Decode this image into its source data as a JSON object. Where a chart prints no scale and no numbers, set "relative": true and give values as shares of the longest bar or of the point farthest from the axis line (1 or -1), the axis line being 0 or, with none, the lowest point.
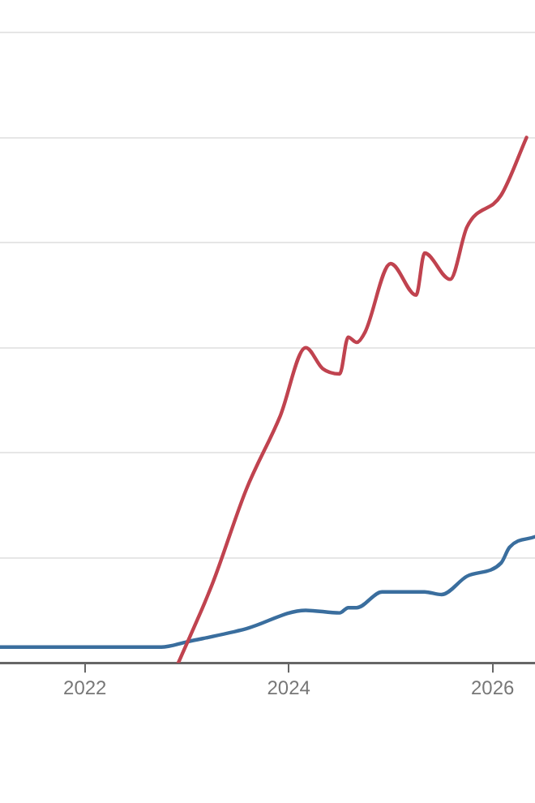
{
  "chart_data": {
    "type": "line",
    "relative": true,
    "grid": "y",
    "marker": "none",
    "line_style": "solid",
    "xlim": [
      "2021-03",
      "2026-06"
    ],
    "xticks": [
      "2022",
      "2024",
      "2026"
    ],
    "series": [
      {
        "color": "#c0434f",
        "x": [
          "2022-12",
          "2023-04",
          "2023-08",
          "2023-12",
          "2024-03",
          "2024-05",
          "2024-07",
          "2024-08",
          "2024-09",
          "2024-10",
          "2025-01",
          "2025-04",
          "2025-05",
          "2025-08",
          "2025-10",
          "2026-02",
          "2026-05"
        ],
        "values": [
          0,
          0.15,
          0.33,
          0.47,
          0.6,
          0.56,
          0.55,
          0.62,
          0.61,
          0.63,
          0.76,
          0.7,
          0.78,
          0.73,
          0.83,
          0.89,
          1
        ]
      },
      {
        "color": "#3a6e9e",
        "x": [
          "2021-03",
          "2022-10",
          "2023-01",
          "2023-08",
          "2024-03",
          "2024-07",
          "2024-08",
          "2024-09",
          "2024-12",
          "2025-05",
          "2025-07",
          "2025-10",
          "2026-02",
          "2026-03",
          "2026-06"
        ],
        "values": [
          0.03,
          0.03,
          0.04,
          0.065,
          0.1,
          0.095,
          0.105,
          0.105,
          0.135,
          0.135,
          0.13,
          0.165,
          0.19,
          0.22,
          0.24
        ]
      }
    ]
  }
}
